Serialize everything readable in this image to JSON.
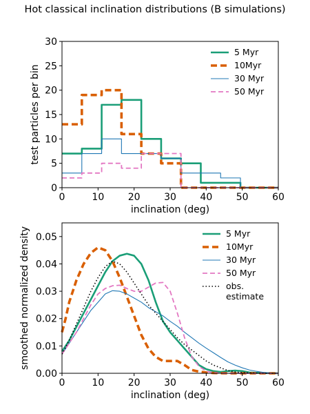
{
  "figure_title": "Hot classical inclination distributions (B simulations)",
  "chart_data": [
    {
      "type": "line",
      "drawstyle": "steps",
      "xlabel": "inclination (deg)",
      "ylabel": "test particles per bin",
      "xlim": [
        0,
        60
      ],
      "ylim": [
        0,
        30
      ],
      "xticks": [
        "0",
        "10",
        "20",
        "30",
        "40",
        "50",
        "60"
      ],
      "yticks": [
        "0",
        "5",
        "10",
        "15",
        "20",
        "25",
        "30"
      ],
      "legend_position": "upper right",
      "bin_edges": [
        0,
        5.5,
        11,
        16.5,
        22,
        27.5,
        33,
        38.5,
        44,
        49.5,
        55,
        60
      ],
      "series": [
        {
          "name": "5 Myr",
          "color": "#1a9e77",
          "style": "solid-thick",
          "values": [
            7,
            8,
            17,
            18,
            10,
            6,
            5,
            1,
            1,
            0,
            0
          ]
        },
        {
          "name": "10Myr",
          "color": "#d95f02",
          "style": "dashed-thick",
          "values": [
            13,
            19,
            20,
            11,
            7,
            5,
            0,
            0,
            0,
            0,
            0
          ]
        },
        {
          "name": "30 Myr",
          "color": "#1f77b4",
          "style": "solid-thin",
          "values": [
            3,
            7,
            10,
            7,
            7,
            6,
            3,
            3,
            2,
            0,
            0
          ]
        },
        {
          "name": "50 Myr",
          "color": "#e377c2",
          "style": "dashed-thin",
          "values": [
            2,
            3,
            5,
            4,
            7,
            7,
            0,
            0,
            0,
            0,
            0
          ]
        }
      ]
    },
    {
      "type": "line",
      "xlabel": "inclination (deg)",
      "ylabel": "smoothed normalized density",
      "xlim": [
        0,
        60
      ],
      "ylim": [
        0,
        0.055
      ],
      "xticks": [
        "0",
        "10",
        "20",
        "30",
        "40",
        "50",
        "60"
      ],
      "yticks": [
        "0.00",
        "0.01",
        "0.02",
        "0.03",
        "0.04",
        "0.05"
      ],
      "legend_position": "upper right",
      "series": [
        {
          "name": "5 Myr",
          "color": "#1a9e77",
          "style": "solid-thick",
          "x": [
            0,
            2,
            4,
            6,
            8,
            10,
            12,
            14,
            16,
            18,
            20,
            22,
            24,
            26,
            28,
            30,
            32,
            34,
            36,
            38,
            40,
            42,
            44,
            46,
            48,
            50,
            52,
            55,
            60
          ],
          "y": [
            0.008,
            0.012,
            0.017,
            0.022,
            0.027,
            0.032,
            0.037,
            0.041,
            0.043,
            0.0437,
            0.043,
            0.04,
            0.034,
            0.026,
            0.019,
            0.015,
            0.012,
            0.009,
            0.006,
            0.003,
            0.0015,
            0.0008,
            0.0005,
            0.0008,
            0.001,
            0.0008,
            0.0003,
            0.0001,
            0
          ]
        },
        {
          "name": "10Myr",
          "color": "#d95f02",
          "style": "dashed-thick",
          "x": [
            0,
            1,
            2,
            4,
            6,
            8,
            10,
            12,
            14,
            16,
            18,
            20,
            22,
            24,
            26,
            28,
            30,
            32,
            34,
            36,
            38,
            40,
            42,
            44,
            46,
            50,
            60
          ],
          "y": [
            0.015,
            0.02,
            0.026,
            0.034,
            0.04,
            0.044,
            0.046,
            0.045,
            0.041,
            0.035,
            0.028,
            0.021,
            0.014,
            0.009,
            0.006,
            0.0045,
            0.0045,
            0.0045,
            0.003,
            0.0012,
            0.0006,
            0.0003,
            0.0001,
            5e-05,
            0,
            0,
            0
          ]
        },
        {
          "name": "30 Myr",
          "color": "#1f77b4",
          "style": "solid-thin",
          "x": [
            0,
            2,
            4,
            6,
            8,
            10,
            12,
            14,
            16,
            18,
            20,
            22,
            24,
            26,
            28,
            30,
            32,
            34,
            36,
            38,
            40,
            42,
            44,
            46,
            48,
            50,
            52,
            54,
            56,
            58,
            60
          ],
          "y": [
            0.007,
            0.011,
            0.015,
            0.019,
            0.023,
            0.026,
            0.029,
            0.0302,
            0.03,
            0.029,
            0.0275,
            0.026,
            0.024,
            0.0225,
            0.021,
            0.019,
            0.0172,
            0.015,
            0.013,
            0.011,
            0.0092,
            0.0075,
            0.0058,
            0.0042,
            0.003,
            0.002,
            0.0012,
            0.0007,
            0.0003,
            0.0001,
            0
          ]
        },
        {
          "name": "50 Myr",
          "color": "#e377c2",
          "style": "dashed-thin",
          "x": [
            0,
            2,
            4,
            6,
            8,
            10,
            12,
            14,
            16,
            18,
            20,
            22,
            24,
            26,
            28,
            30,
            32,
            34,
            36,
            38,
            40,
            42,
            44,
            46,
            60
          ],
          "y": [
            0.007,
            0.011,
            0.015,
            0.02,
            0.025,
            0.029,
            0.031,
            0.032,
            0.0322,
            0.031,
            0.03,
            0.03,
            0.0315,
            0.033,
            0.0332,
            0.03,
            0.022,
            0.013,
            0.006,
            0.0025,
            0.0008,
            0.0002,
            5e-05,
            0,
            0
          ]
        },
        {
          "name": "obs.\nestimate",
          "color": "#000000",
          "style": "dotted",
          "x": [
            0,
            2,
            4,
            6,
            8,
            10,
            12,
            14,
            16,
            18,
            20,
            22,
            24,
            26,
            28,
            30,
            32,
            34,
            36,
            38,
            40,
            42,
            44,
            46,
            48,
            50,
            55,
            60
          ],
          "y": [
            0.007,
            0.012,
            0.018,
            0.024,
            0.03,
            0.035,
            0.039,
            0.041,
            0.04,
            0.037,
            0.033,
            0.029,
            0.025,
            0.022,
            0.019,
            0.016,
            0.013,
            0.0105,
            0.0085,
            0.0065,
            0.0045,
            0.003,
            0.002,
            0.001,
            0.0005,
            0.0002,
            0,
            0
          ]
        }
      ]
    }
  ]
}
